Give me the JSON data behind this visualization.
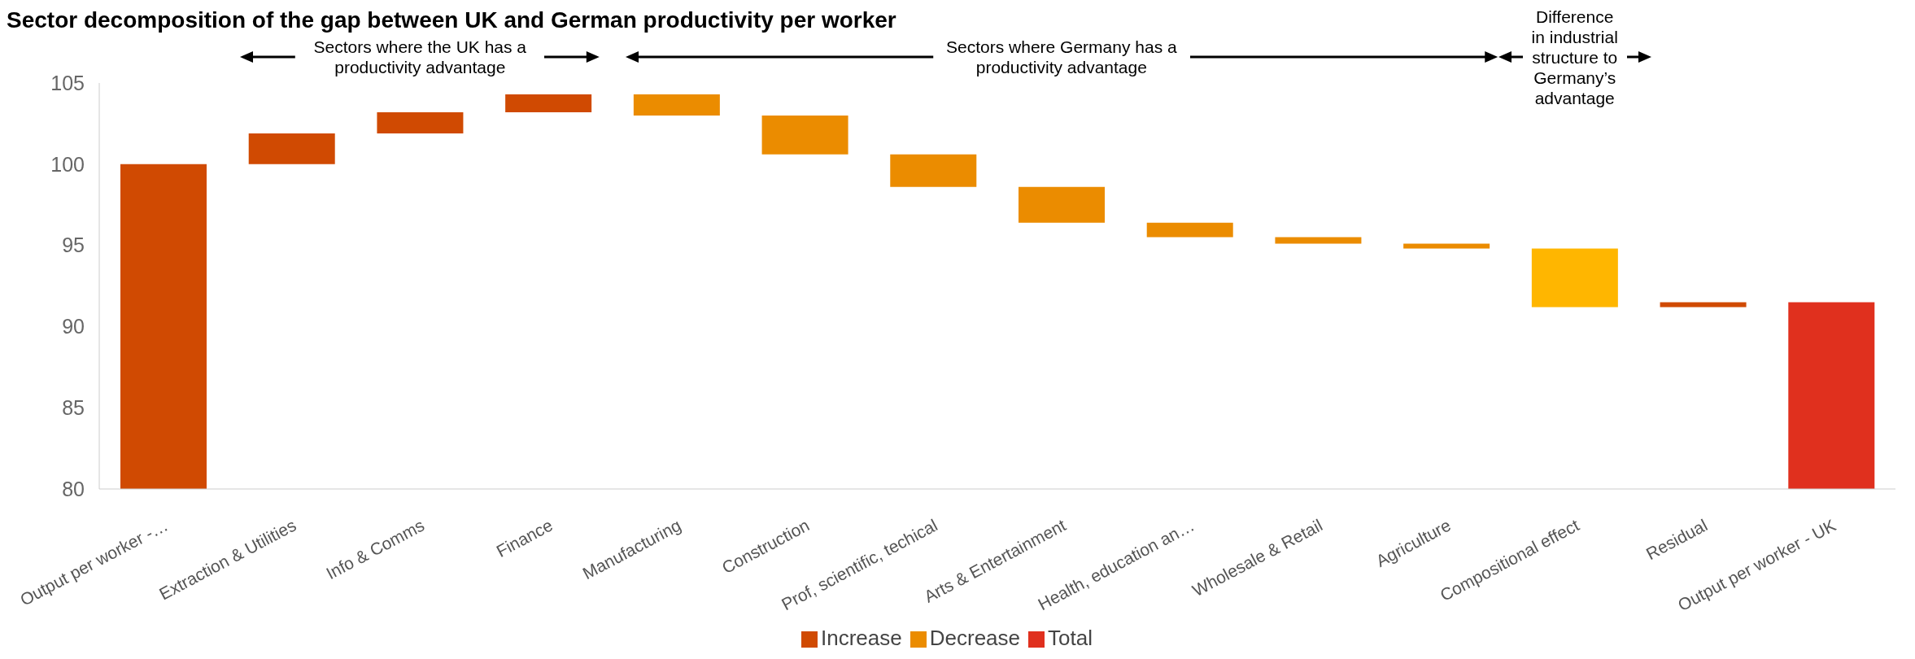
{
  "chart_data": {
    "type": "bar",
    "title": "Sector decomposition of the gap between UK and German productivity per worker",
    "categories": [
      "Output per worker -…",
      "Extraction & Utilities",
      "Info & Comms",
      "Finance",
      "Manufacturing",
      "Construction",
      "Prof, scientific, techical",
      "Arts & Entertainment",
      "Health, education an…",
      "Wholesale & Retail",
      "Agriculture",
      "Compositional effect",
      "Residual",
      "Output per worker - UK"
    ],
    "series": [
      {
        "name": "Increase",
        "color": "#d04a02",
        "values": [
          100,
          1.9,
          1.3,
          1.1,
          null,
          null,
          null,
          null,
          null,
          null,
          null,
          null,
          0.3,
          null
        ],
        "base": [
          null,
          100,
          101.9,
          103.2,
          null,
          null,
          null,
          null,
          null,
          null,
          null,
          null,
          91.2,
          null
        ]
      },
      {
        "name": "Decrease",
        "color": "#eb8c00",
        "colors": [
          null,
          null,
          null,
          null,
          "#eb8c00",
          "#eb8c00",
          "#eb8c00",
          "#eb8c00",
          "#eb8c00",
          "#eb8c00",
          "#eb8c00",
          "#ffb600",
          null,
          null
        ],
        "values": [
          null,
          null,
          null,
          null,
          -1.3,
          -2.4,
          -2.0,
          -2.2,
          -0.9,
          -0.4,
          -0.3,
          -3.6,
          null,
          null
        ],
        "base": [
          null,
          null,
          null,
          null,
          104.3,
          103.0,
          100.6,
          98.6,
          96.4,
          95.5,
          95.1,
          94.8,
          null,
          null
        ]
      },
      {
        "name": "Total",
        "color": "#e0301e",
        "values": [
          null,
          null,
          null,
          null,
          null,
          null,
          null,
          null,
          null,
          null,
          null,
          null,
          null,
          91.5
        ]
      }
    ],
    "ylim": [
      80,
      105
    ],
    "yticks": [
      80,
      85,
      90,
      95,
      100,
      105
    ],
    "legend": "bottom",
    "annotations": [
      "Sectors where the UK has a productivity advantage",
      "Sectors where Germany has a productivity advantage",
      "Difference in industrial structure to Germany’s advantage"
    ]
  }
}
